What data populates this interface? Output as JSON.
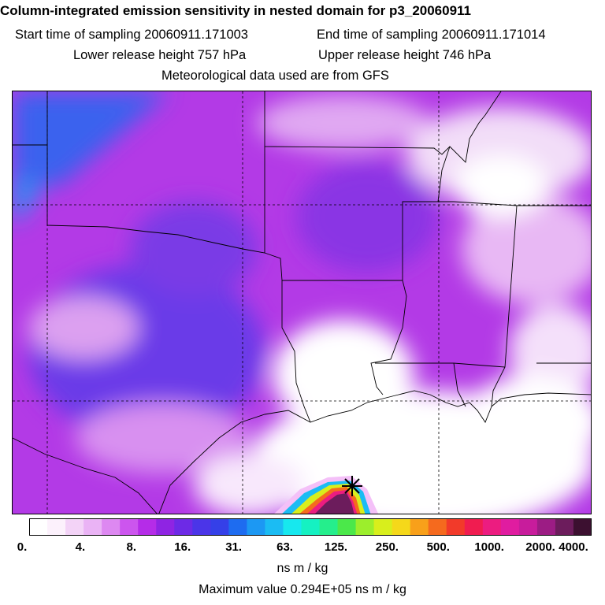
{
  "header": {
    "title": "Column-integrated emission sensitivity in nested domain for p3_20060911",
    "start_label": "Start time of sampling 20060911.171003",
    "end_label": "End time of sampling 20060911.171014",
    "lower_label": "Lower release height  757 hPa",
    "upper_label": "Upper release height  746 hPa",
    "met_label": "Meteorological data used are from GFS"
  },
  "map": {
    "source_marker": "star-marker-icon",
    "background_color": "#ffffff",
    "border_color": "#000000"
  },
  "colorbar": {
    "colors": [
      "#ffffff",
      "#fcf1fc",
      "#f3d3f7",
      "#eab3f5",
      "#dd88f1",
      "#cc55ee",
      "#b52ce8",
      "#8f24e3",
      "#6d2ae6",
      "#4b35e8",
      "#3540e8",
      "#1e6cf0",
      "#1c98f3",
      "#1bbcf3",
      "#17e8ee",
      "#15f1c2",
      "#25ee8c",
      "#4be84a",
      "#9cee2c",
      "#d8ee1c",
      "#f5d81a",
      "#f8a01a",
      "#f56a1e",
      "#f23a2a",
      "#f01c50",
      "#ec1c80",
      "#e01ca0",
      "#c81c9c",
      "#9c1c84",
      "#6c1c5c",
      "#3c1030"
    ],
    "tick_labels": [
      "0.",
      "4.",
      "8.",
      "16.",
      "31.",
      "63.",
      "125.",
      "250.",
      "500.",
      "1000.",
      "2000.",
      "4000."
    ],
    "units": "ns m / kg"
  },
  "footer": {
    "max_label": "Maximum value  0.294E+05 ns m / kg"
  }
}
